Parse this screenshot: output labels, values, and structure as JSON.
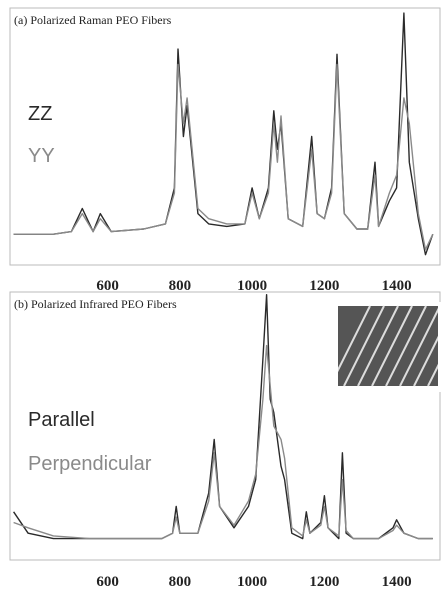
{
  "chart_data": [
    {
      "type": "line",
      "title": "(a) Polarized Raman  PEO Fibers",
      "x": [
        340,
        450,
        500,
        530,
        560,
        580,
        610,
        700,
        760,
        785,
        795,
        810,
        820,
        850,
        880,
        930,
        980,
        1000,
        1020,
        1045,
        1060,
        1070,
        1080,
        1100,
        1140,
        1165,
        1180,
        1200,
        1220,
        1235,
        1255,
        1290,
        1320,
        1340,
        1350,
        1380,
        1400,
        1420,
        1435,
        1460,
        1480,
        1500
      ],
      "series": [
        {
          "name": "ZZ",
          "color": "#2a2a2a",
          "values": [
            12,
            12,
            13,
            22,
            13,
            20,
            13,
            14,
            16,
            30,
            84,
            50,
            62,
            20,
            16,
            15,
            16,
            30,
            18,
            30,
            60,
            45,
            55,
            18,
            15,
            50,
            20,
            18,
            30,
            82,
            20,
            14,
            14,
            40,
            15,
            25,
            30,
            98,
            40,
            18,
            4,
            12
          ]
        },
        {
          "name": "YY",
          "color": "#8a8a8a",
          "values": [
            12,
            12,
            13,
            20,
            13,
            18,
            13,
            14,
            16,
            28,
            78,
            55,
            65,
            22,
            18,
            16,
            16,
            28,
            18,
            28,
            55,
            40,
            58,
            18,
            15,
            45,
            20,
            18,
            28,
            78,
            20,
            14,
            14,
            35,
            15,
            28,
            35,
            65,
            55,
            20,
            6,
            12
          ]
        }
      ],
      "xlim": [
        330,
        1520
      ],
      "xticks": [
        600,
        800,
        1000,
        1200,
        1400
      ],
      "ylim": [
        0,
        100
      ]
    },
    {
      "type": "line",
      "title": "(b) Polarized Infrared  PEO Fibers",
      "x": [
        340,
        380,
        450,
        550,
        650,
        750,
        780,
        790,
        800,
        850,
        880,
        895,
        910,
        950,
        990,
        1010,
        1030,
        1040,
        1050,
        1060,
        1080,
        1090,
        1110,
        1140,
        1150,
        1160,
        1190,
        1200,
        1210,
        1240,
        1250,
        1260,
        1280,
        1350,
        1390,
        1400,
        1420,
        1460,
        1500
      ],
      "series": [
        {
          "name": "Parallel",
          "color": "#2a2a2a",
          "values": [
            18,
            10,
            8,
            8,
            8,
            8,
            10,
            20,
            10,
            10,
            25,
            45,
            20,
            12,
            20,
            30,
            75,
            99,
            60,
            55,
            35,
            30,
            10,
            8,
            18,
            10,
            14,
            24,
            12,
            8,
            40,
            10,
            8,
            8,
            12,
            15,
            10,
            8,
            8
          ]
        },
        {
          "name": "Perpendicular",
          "color": "#8a8a8a",
          "values": [
            14,
            12,
            9,
            8,
            8,
            8,
            10,
            16,
            10,
            10,
            22,
            40,
            20,
            13,
            22,
            32,
            60,
            80,
            65,
            50,
            45,
            38,
            12,
            9,
            15,
            10,
            13,
            20,
            12,
            9,
            30,
            11,
            8,
            8,
            11,
            13,
            10,
            8,
            8
          ]
        }
      ],
      "xlim": [
        330,
        1520
      ],
      "xticks": [
        600,
        800,
        1000,
        1200,
        1400
      ],
      "ylim": [
        0,
        100
      ]
    }
  ]
}
